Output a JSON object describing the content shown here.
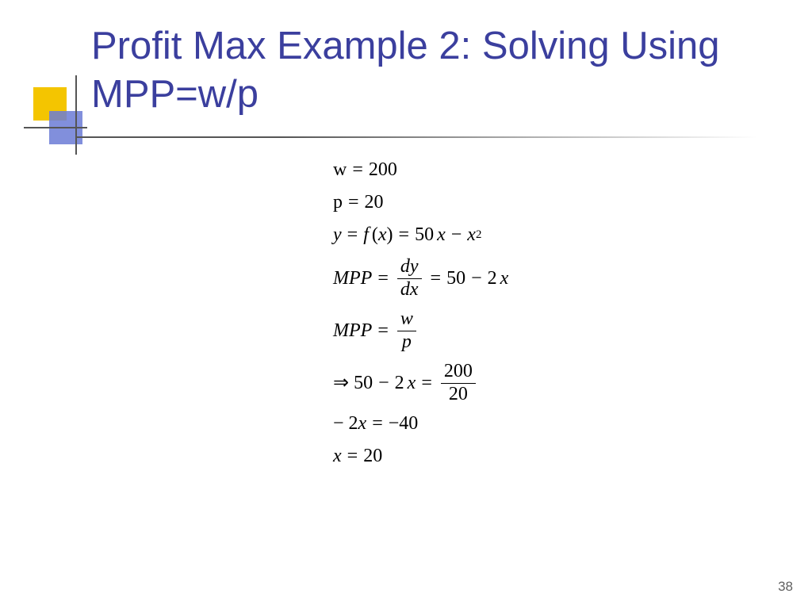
{
  "slide": {
    "title": "Profit Max Example 2: Solving Using MPP=w/p",
    "page_number": "38",
    "colors": {
      "title_color": "#3b3f9e",
      "accent_yellow": "#f4c500",
      "accent_blue": "#6b7bd6",
      "rule_color": "#555555",
      "background": "#ffffff",
      "math_color": "#000000",
      "page_num_color": "#606060"
    },
    "fonts": {
      "title_family": "Verdana",
      "title_size_pt": 36,
      "math_family": "Times New Roman",
      "math_size_pt": 18
    }
  },
  "math": {
    "w_label": "w",
    "w_value": "200",
    "p_label": "p",
    "p_value": "20",
    "y": "y",
    "f": "f",
    "x": "x",
    "coef50": "50",
    "coef2": "2",
    "exponent2": "2",
    "MPP": "MPP",
    "dy": "dy",
    "dx": "dx",
    "w_it": "w",
    "p_it": "p",
    "implies": "⇒",
    "frac200": "200",
    "frac20": "20",
    "neg2x_lhs": "− 2",
    "neg40": "−40",
    "ans": "20",
    "minus": "−",
    "lparen": "(",
    "rparen": ")",
    "equals": "="
  }
}
